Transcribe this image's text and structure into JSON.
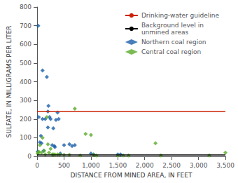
{
  "chart_data": {
    "type": "scatter",
    "xlabel": "DISTANCE FROM MINED AREA, IN FEET",
    "ylabel": "SULFATE, IN MILLIGRAMS PER LITER",
    "xlim": [
      0,
      3500
    ],
    "ylim": [
      0,
      800
    ],
    "xticks": [
      0,
      500,
      {
        "value": 1000,
        "label": "1,000"
      },
      {
        "value": 1500,
        "label": "1,500"
      },
      {
        "value": 2000,
        "label": "2,000"
      },
      {
        "value": 2500,
        "label": "2,500"
      },
      {
        "value": 3000,
        "label": "3,000"
      },
      {
        "value": 3500,
        "label": "3,500"
      }
    ],
    "yticks": [
      0,
      100,
      200,
      300,
      400,
      500,
      600,
      700,
      800
    ],
    "grid": false,
    "legend": "upper right",
    "series": [
      {
        "name": "Drinking-water guideline",
        "type": "hline",
        "color": "#cc2200",
        "line_style": "solid",
        "values": [
          240
        ]
      },
      {
        "name": "Background level in\nunmined areas",
        "type": "hline",
        "color": "#000000",
        "line_style": "solid",
        "values": [
          10
        ]
      },
      {
        "name": "Northern coal region",
        "type": "scatter",
        "color": "#1a5fa8",
        "marker": "diamond",
        "x": [
          10,
          20,
          30,
          50,
          70,
          80,
          100,
          100,
          120,
          150,
          180,
          200,
          200,
          210,
          230,
          250,
          280,
          300,
          320,
          330,
          350,
          380,
          400,
          430,
          500,
          600,
          650,
          700,
          1000,
          1050,
          1500,
          1550
        ],
        "values": [
          25,
          700,
          210,
          75,
          110,
          70,
          460,
          200,
          30,
          200,
          425,
          240,
          155,
          270,
          210,
          200,
          60,
          150,
          55,
          50,
          195,
          235,
          200,
          15,
          60,
          65,
          55,
          60,
          15,
          10,
          10,
          10
        ]
      },
      {
        "name": "Central coal region",
        "type": "scatter",
        "color": "#5aaa2a",
        "marker": "diamond",
        "x": [
          10,
          20,
          30,
          50,
          80,
          100,
          130,
          150,
          180,
          200,
          220,
          250,
          280,
          300,
          330,
          380,
          420,
          500,
          600,
          700,
          800,
          900,
          1000,
          1050,
          1100,
          1500,
          1600,
          1700,
          2200,
          2300,
          3200,
          3500
        ],
        "values": [
          15,
          20,
          25,
          60,
          20,
          100,
          30,
          10,
          210,
          65,
          20,
          40,
          10,
          10,
          10,
          10,
          10,
          8,
          8,
          255,
          5,
          120,
          115,
          8,
          5,
          5,
          5,
          5,
          70,
          5,
          5,
          20
        ]
      }
    ]
  }
}
